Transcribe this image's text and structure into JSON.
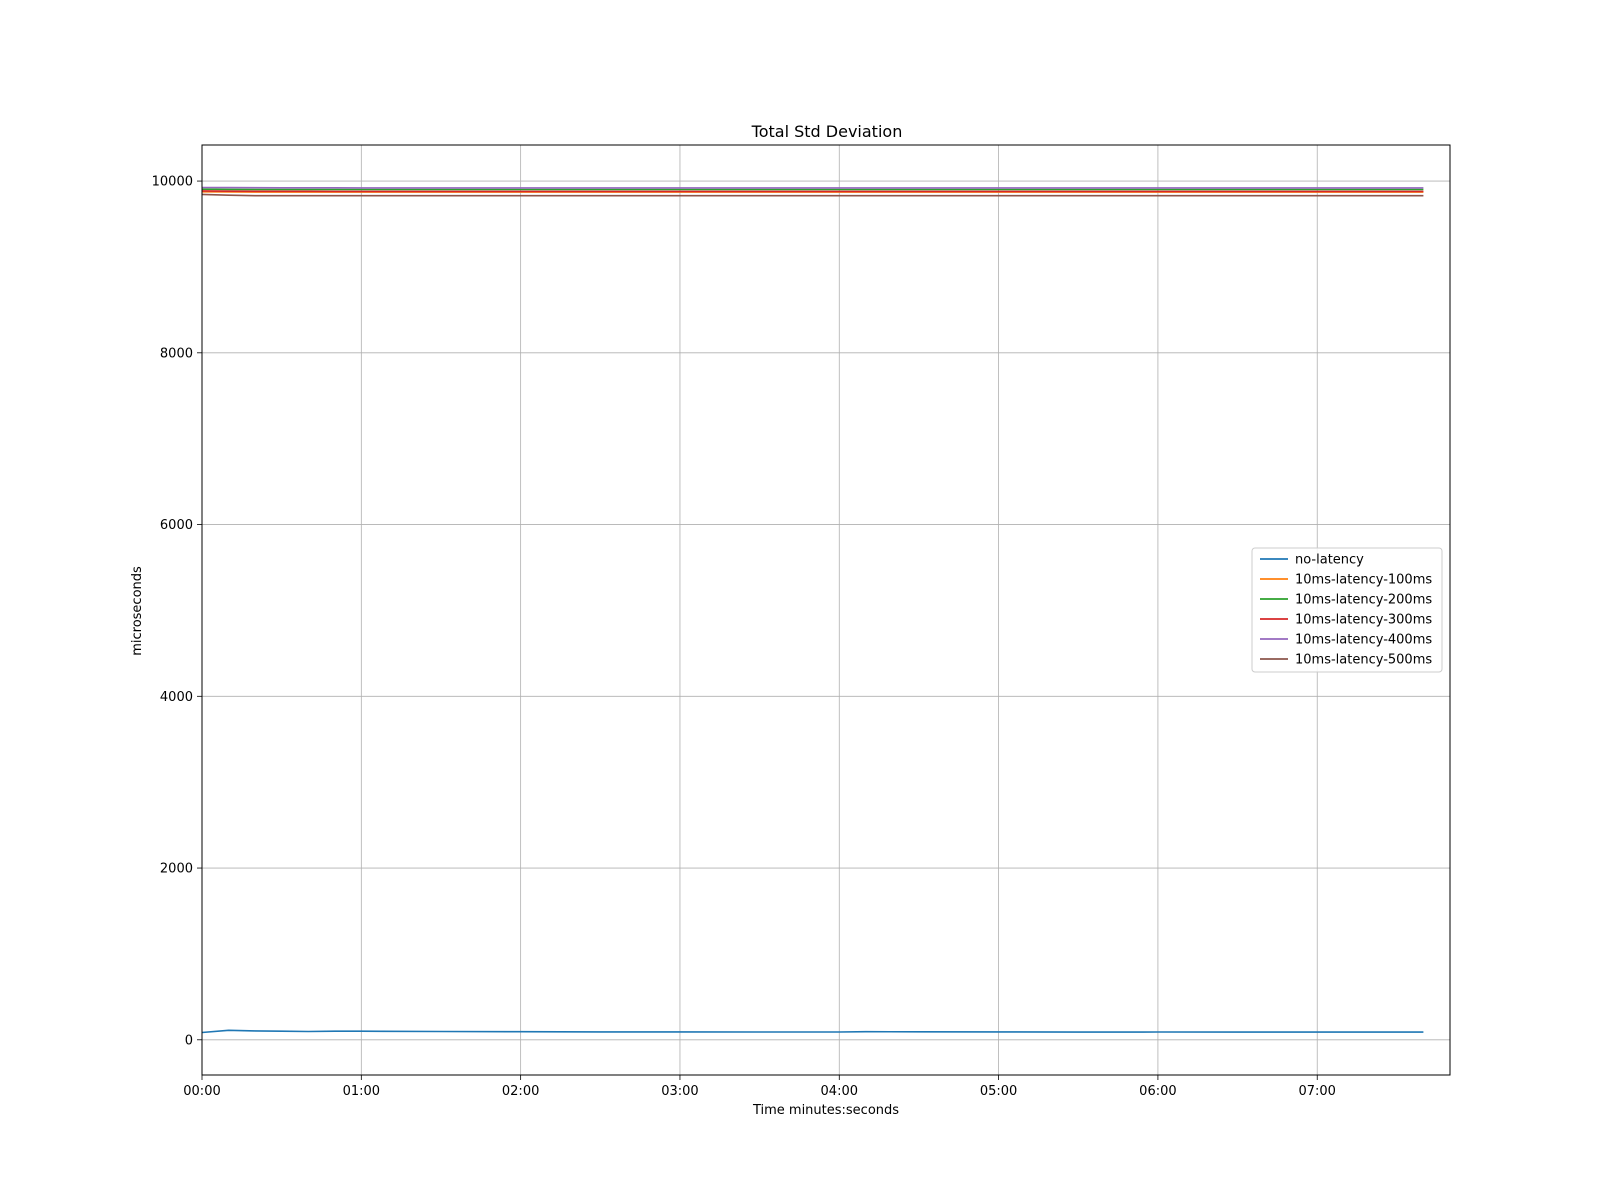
{
  "chart_data": {
    "type": "line",
    "title": "Total Std Deviation",
    "xlabel": "Time minutes:seconds",
    "ylabel": "microseconds",
    "xlim": [
      "00:00",
      "07:50"
    ],
    "ylim": [
      -410,
      10420
    ],
    "x_ticks": [
      "00:00",
      "01:00",
      "02:00",
      "03:00",
      "04:00",
      "05:00",
      "06:00",
      "07:00"
    ],
    "y_ticks": [
      0,
      2000,
      4000,
      6000,
      8000,
      10000
    ],
    "grid": true,
    "legend_position": "center-right",
    "x": [
      "00:00",
      "00:10",
      "00:20",
      "00:30",
      "00:40",
      "00:50",
      "01:00",
      "01:30",
      "02:00",
      "02:30",
      "03:00",
      "03:30",
      "04:00",
      "04:10",
      "04:30",
      "05:00",
      "05:30",
      "06:00",
      "06:30",
      "07:00",
      "07:30",
      "07:40"
    ],
    "series": [
      {
        "name": "no-latency",
        "color": "#1f77b4",
        "values": [
          85,
          110,
          104,
          100,
          97,
          100,
          100,
          97,
          94,
          92,
          92,
          91,
          91,
          94,
          93,
          92,
          90,
          91,
          90,
          90,
          89,
          90
        ]
      },
      {
        "name": "10ms-latency-100ms",
        "color": "#ff7f0e",
        "values": [
          9875,
          9873,
          9872,
          9872,
          9871,
          9871,
          9871,
          9871,
          9871,
          9871,
          9871,
          9871,
          9871,
          9871,
          9871,
          9871,
          9871,
          9871,
          9871,
          9871,
          9871,
          9871
        ]
      },
      {
        "name": "10ms-latency-200ms",
        "color": "#2ca02c",
        "values": [
          9905,
          9903,
          9902,
          9902,
          9902,
          9902,
          9902,
          9902,
          9902,
          9902,
          9902,
          9902,
          9902,
          9902,
          9902,
          9902,
          9902,
          9902,
          9902,
          9902,
          9902,
          9902
        ]
      },
      {
        "name": "10ms-latency-300ms",
        "color": "#d62728",
        "values": [
          9885,
          9882,
          9881,
          9881,
          9881,
          9880,
          9880,
          9880,
          9880,
          9880,
          9880,
          9880,
          9880,
          9880,
          9880,
          9880,
          9880,
          9880,
          9880,
          9880,
          9880,
          9880
        ]
      },
      {
        "name": "10ms-latency-400ms",
        "color": "#9467bd",
        "values": [
          9925,
          9924,
          9923,
          9922,
          9922,
          9922,
          9921,
          9921,
          9921,
          9921,
          9921,
          9921,
          9921,
          9921,
          9921,
          9921,
          9921,
          9921,
          9921,
          9921,
          9921,
          9921
        ]
      },
      {
        "name": "10ms-latency-500ms",
        "color": "#8c564b",
        "values": [
          9845,
          9835,
          9830,
          9830,
          9830,
          9830,
          9830,
          9830,
          9830,
          9830,
          9830,
          9830,
          9830,
          9830,
          9830,
          9830,
          9830,
          9830,
          9830,
          9830,
          9830,
          9830
        ]
      }
    ]
  }
}
